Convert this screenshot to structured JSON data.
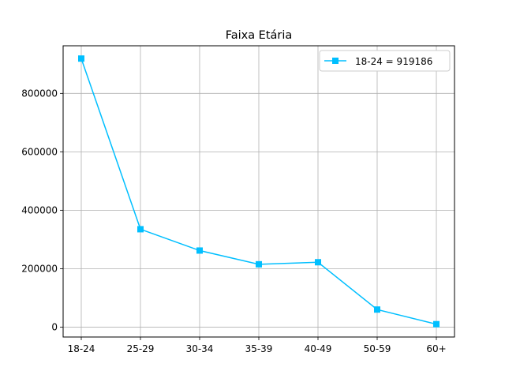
{
  "chart_data": {
    "type": "line",
    "title": "Faixa Etária",
    "xlabel": "",
    "ylabel": "",
    "categories": [
      "18-24",
      "25-29",
      "30-34",
      "35-39",
      "40-49",
      "50-59",
      "60+"
    ],
    "series": [
      {
        "name": "18-24 = 919186",
        "values": [
          919186,
          335000,
          262000,
          215000,
          222000,
          60000,
          10000
        ],
        "color": "#00bfff",
        "marker": "square"
      }
    ],
    "ylim": [
      -34000,
      963000
    ],
    "yticks": [
      0,
      200000,
      400000,
      600000,
      800000
    ],
    "ytick_labels": [
      "0",
      "200000",
      "400000",
      "600000",
      "800000"
    ],
    "grid": true,
    "legend_position": "top-right"
  }
}
